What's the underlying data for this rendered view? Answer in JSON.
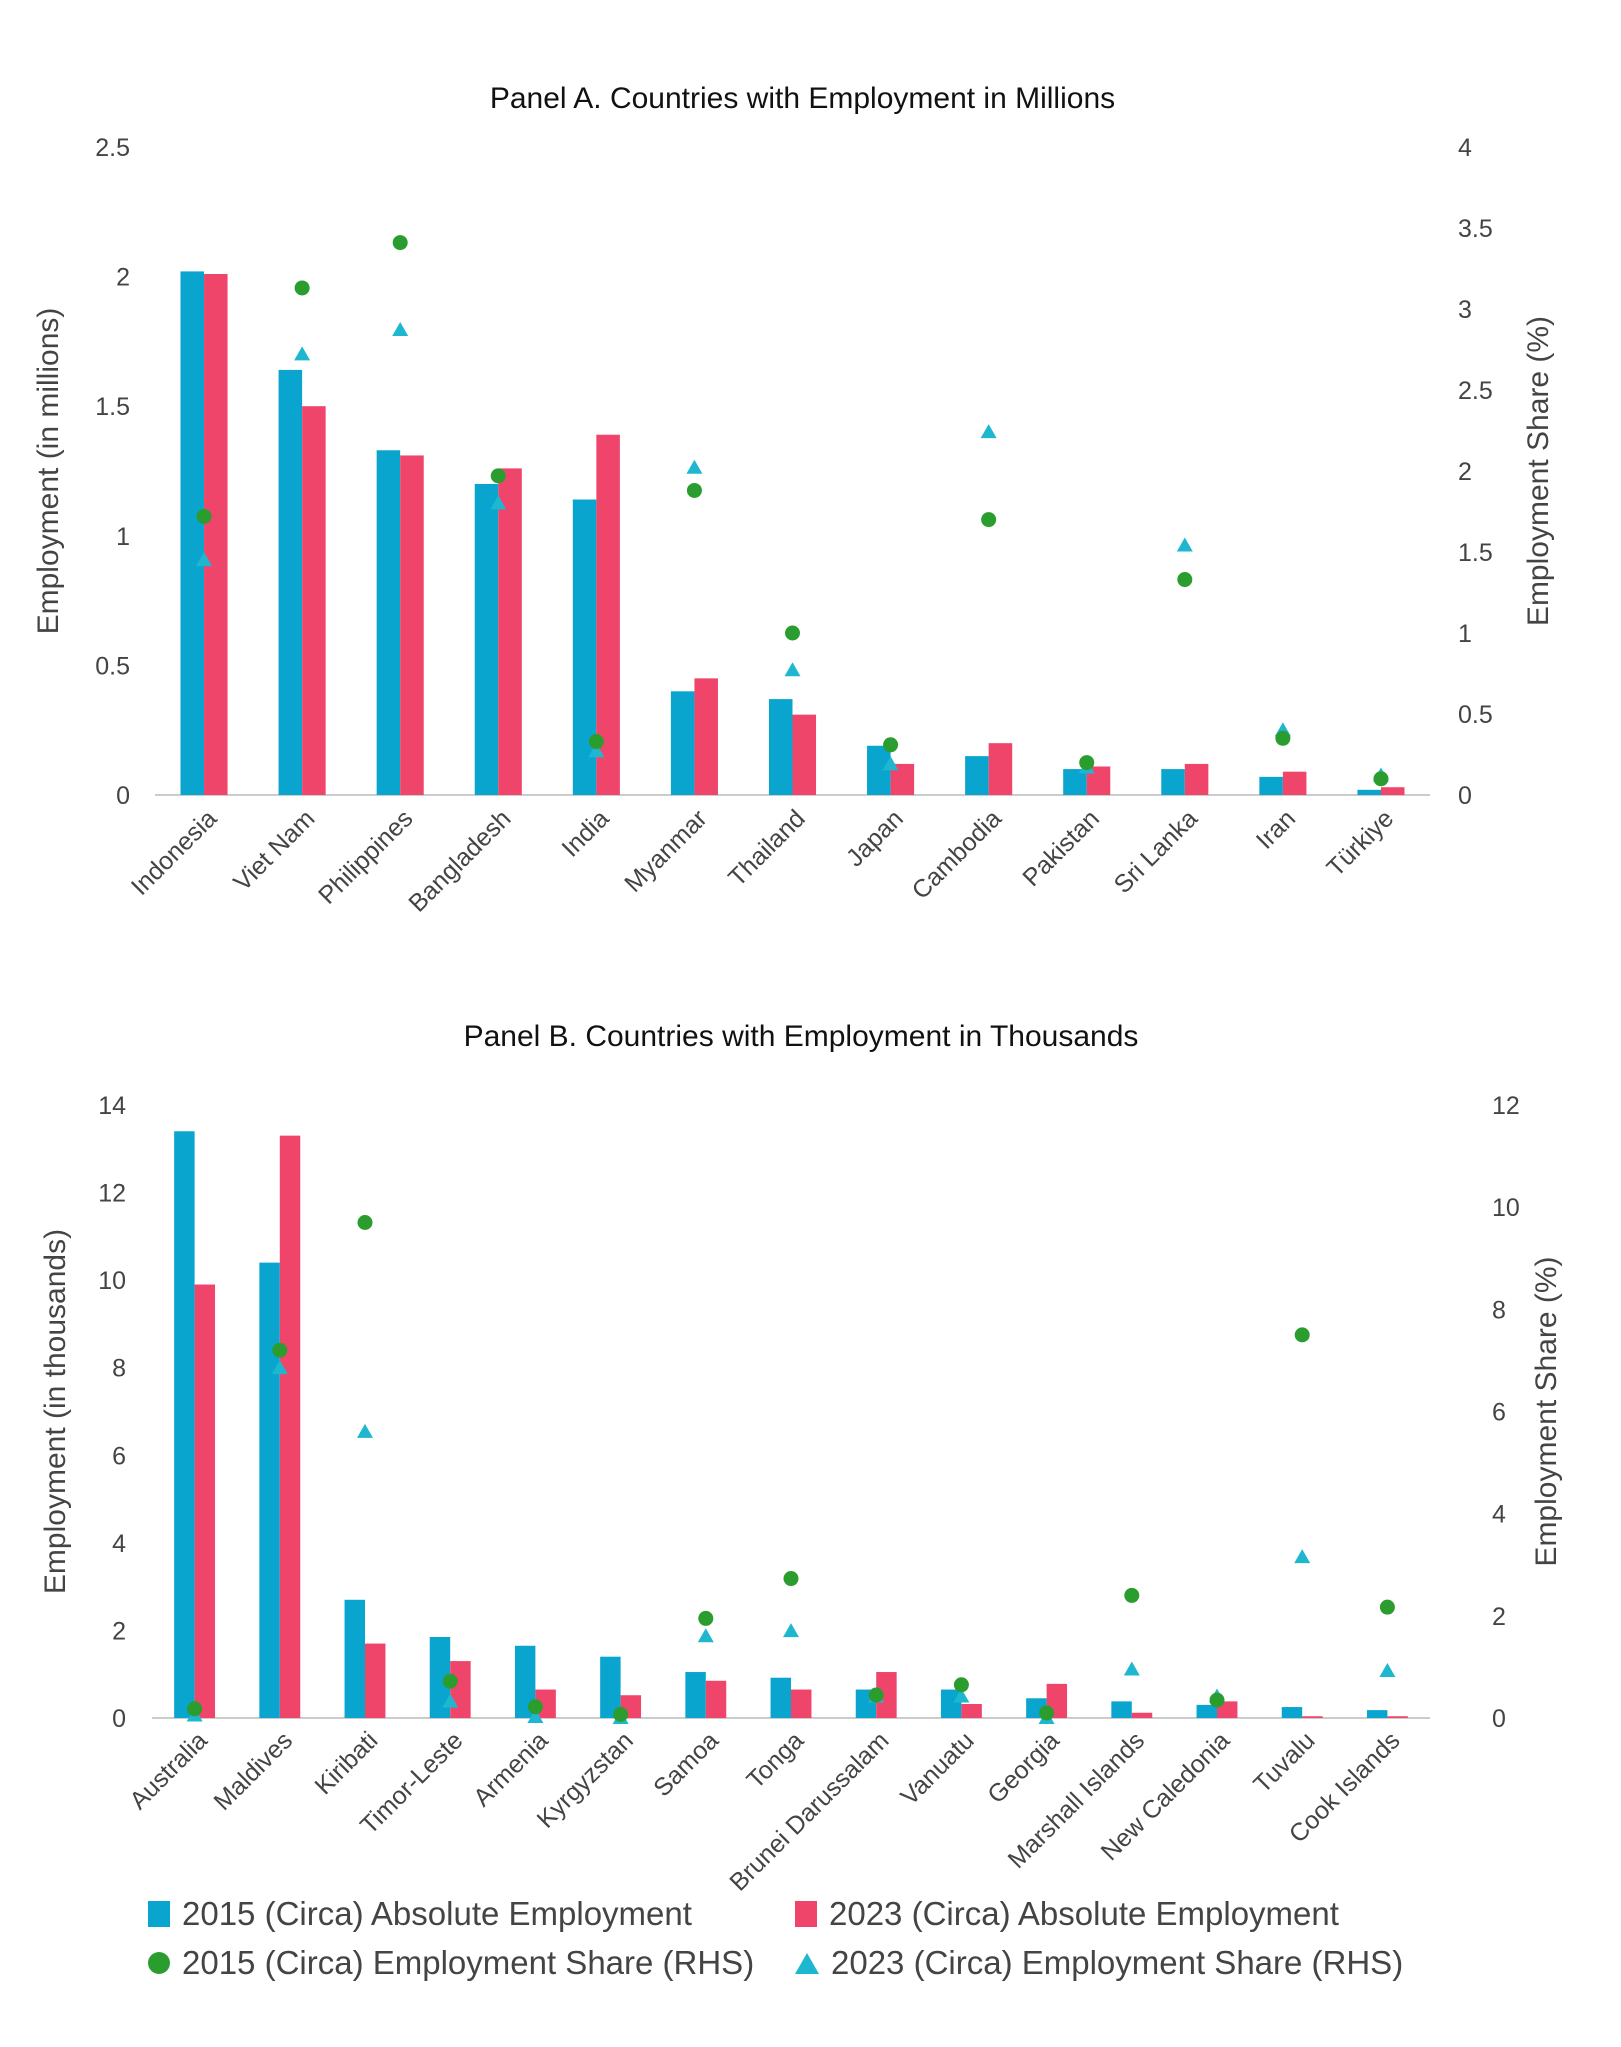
{
  "colors": {
    "abs2015": "#0aa5cf",
    "abs2023": "#f0456b",
    "share2015": "#2a9d2e",
    "share2023": "#1fb7cf",
    "axis": "#cccccc",
    "text": "#444444"
  },
  "legend": {
    "items": [
      {
        "label": "2015 (Circa) Absolute Employment",
        "marker": "square",
        "color": "#0aa5cf"
      },
      {
        "label": "2023 (Circa) Absolute Employment",
        "marker": "square",
        "color": "#f0456b"
      },
      {
        "label": "2015 (Circa) Employment Share (RHS)",
        "marker": "circle",
        "color": "#2a9d2e"
      },
      {
        "label": "2023 (Circa) Employment Share (RHS)",
        "marker": "triangle",
        "color": "#1fb7cf"
      }
    ]
  },
  "chart_data": [
    {
      "type": "bar",
      "title": "Panel A. Countries with Employment in Millions",
      "ylabel": "Employment (in millions)",
      "y2label": "Employment Share (%)",
      "ylim": [
        0,
        2.5
      ],
      "y2lim": [
        0,
        4
      ],
      "yticks": [
        "0",
        "0.5",
        "1",
        "1.5",
        "2",
        "2.5"
      ],
      "y2ticks": [
        "0",
        "0.5",
        "1",
        "1.5",
        "2",
        "2.5",
        "3",
        "3.5",
        "4"
      ],
      "categories": [
        "Indonesia",
        "Viet Nam",
        "Philippines",
        "Bangladesh",
        "India",
        "Myanmar",
        "Thailand",
        "Japan",
        "Cambodia",
        "Pakistan",
        "Sri Lanka",
        "Iran",
        "Türkiye"
      ],
      "series": [
        {
          "name": "2015 (Circa) Absolute Employment",
          "axis": "left",
          "values": [
            2.02,
            1.64,
            1.33,
            1.2,
            1.14,
            0.4,
            0.37,
            0.19,
            0.15,
            0.1,
            0.1,
            0.07,
            0.02
          ]
        },
        {
          "name": "2023 (Circa) Absolute Employment",
          "axis": "left",
          "values": [
            2.01,
            1.5,
            1.31,
            1.26,
            1.39,
            0.45,
            0.31,
            0.12,
            0.2,
            0.11,
            0.12,
            0.09,
            0.03
          ]
        },
        {
          "name": "2015 (Circa) Employment Share (RHS)",
          "axis": "right",
          "values": [
            1.72,
            3.13,
            3.41,
            1.97,
            0.33,
            1.88,
            1.0,
            0.31,
            1.7,
            0.2,
            1.33,
            0.35,
            0.1
          ]
        },
        {
          "name": "2023 (Circa) Employment Share (RHS)",
          "axis": "right",
          "values": [
            1.45,
            2.72,
            2.87,
            1.8,
            0.27,
            2.02,
            0.77,
            0.19,
            2.24,
            0.17,
            1.54,
            0.4,
            0.12
          ]
        }
      ]
    },
    {
      "type": "bar",
      "title": "Panel B. Countries with Employment in Thousands",
      "ylabel": "Employment (in thousands)",
      "y2label": "Employment Share (%)",
      "ylim": [
        0,
        14
      ],
      "y2lim": [
        0,
        12
      ],
      "yticks": [
        "0",
        "2",
        "4",
        "6",
        "8",
        "10",
        "12",
        "14"
      ],
      "y2ticks": [
        "0",
        "2",
        "4",
        "6",
        "8",
        "10",
        "12"
      ],
      "categories": [
        "Australia",
        "Maldives",
        "Kiribati",
        "Timor-Leste",
        "Armenia",
        "Kyrgyzstan",
        "Samoa",
        "Tonga",
        "Brunei Darussalam",
        "Vanuatu",
        "Georgia",
        "Marshall Islands",
        "New Caledonia",
        "Tuvalu",
        "Cook Islands"
      ],
      "series": [
        {
          "name": "2015 (Circa) Absolute Employment",
          "axis": "left",
          "values": [
            13.4,
            10.4,
            2.7,
            1.85,
            1.65,
            1.4,
            1.05,
            0.92,
            0.65,
            0.65,
            0.45,
            0.38,
            0.3,
            0.25,
            0.18
          ]
        },
        {
          "name": "2023 (Circa) Absolute Employment",
          "axis": "left",
          "values": [
            9.9,
            13.3,
            1.7,
            1.3,
            0.65,
            0.52,
            0.85,
            0.65,
            1.05,
            0.32,
            0.78,
            0.12,
            0.38,
            0.04,
            0.04
          ]
        },
        {
          "name": "2015 (Circa) Employment Share (RHS)",
          "axis": "right",
          "values": [
            0.18,
            7.2,
            9.7,
            0.72,
            0.22,
            0.07,
            1.95,
            2.73,
            0.45,
            0.65,
            0.1,
            2.4,
            0.35,
            7.5,
            2.17
          ]
        },
        {
          "name": "2023 (Circa) Employment Share (RHS)",
          "axis": "right",
          "values": [
            0.05,
            6.85,
            5.6,
            0.32,
            0.02,
            0.0,
            1.6,
            1.7,
            0.42,
            0.42,
            0.0,
            0.95,
            0.42,
            3.15,
            0.92
          ]
        }
      ]
    }
  ]
}
